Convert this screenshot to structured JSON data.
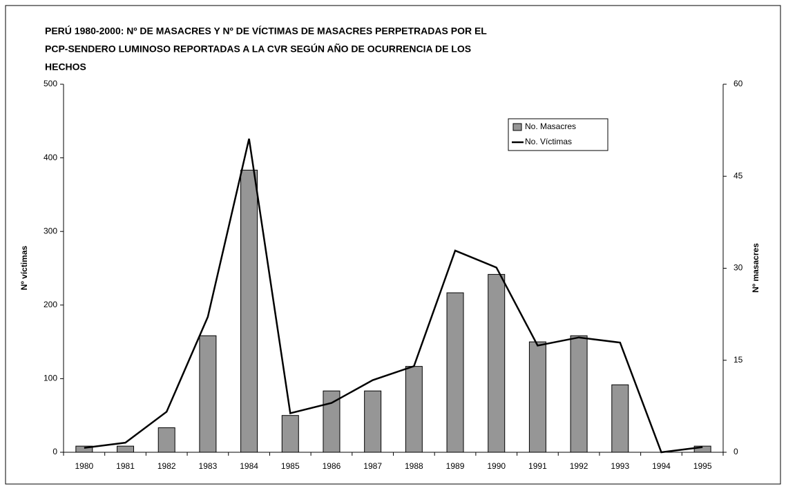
{
  "chart_data": {
    "type": "bar_line",
    "title": [
      "PERÚ 1980-2000: Nº DE MASACRES Y Nº DE VÍCTIMAS DE MASACRES PERPETRADAS POR EL",
      "PCP-SENDERO LUMINOSO REPORTADAS A LA CVR SEGÚN AÑO DE OCURRENCIA DE LOS",
      "HECHOS"
    ],
    "ylabel": "Nº víctimas",
    "y2label": "Nº masacres",
    "categories": [
      "1980",
      "1981",
      "1982",
      "1983",
      "1984",
      "1985",
      "1986",
      "1987",
      "1988",
      "1989",
      "1990",
      "1991",
      "1992",
      "1993",
      "1994",
      "1995"
    ],
    "series": [
      {
        "name": "No. Masacres",
        "kind": "bar",
        "axis": "y2",
        "color": "#969696",
        "values": [
          1,
          1,
          4,
          19,
          46,
          6,
          10,
          10,
          14,
          26,
          29,
          18,
          19,
          11,
          0,
          1
        ]
      },
      {
        "name": "No. Víctimas",
        "kind": "line",
        "color": "#000000",
        "values": [
          6,
          13,
          55,
          184,
          426,
          53,
          67,
          98,
          117,
          274,
          251,
          145,
          156,
          149,
          0,
          7
        ]
      }
    ],
    "ylim": [
      0,
      500
    ],
    "yticks": [
      0,
      100,
      200,
      300,
      400,
      500
    ],
    "y2lim": [
      0,
      60
    ],
    "y2ticks": [
      0,
      15,
      30,
      45,
      60
    ],
    "legend": "upper right",
    "grid": false
  }
}
